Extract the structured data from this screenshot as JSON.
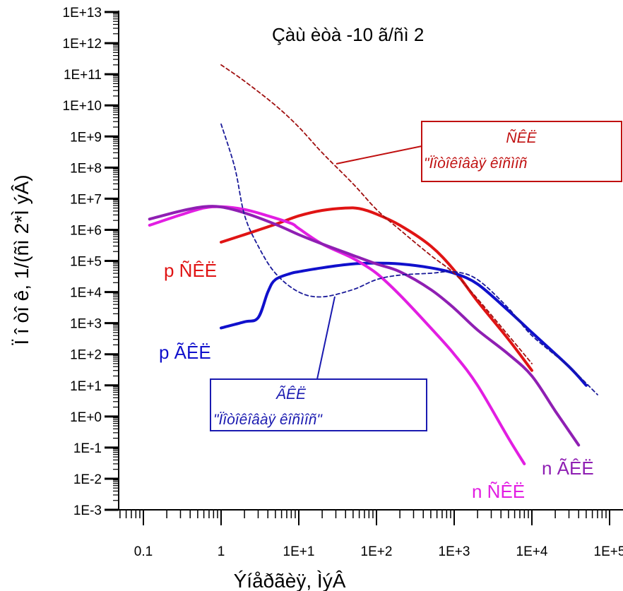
{
  "chart_data": {
    "type": "line",
    "title": "Çàù èòà -10 ã/ñì 2",
    "xlabel": "Ýíåðãèÿ, ÌýÂ",
    "ylabel": "Ï î òî ê, 1/(ñì 2*Ì ýÂ)",
    "x_scale": "log",
    "y_scale": "log",
    "xlim": [
      0.05,
      150000
    ],
    "ylim": [
      0.001,
      10000000000000.0
    ],
    "x_tick_labels": [
      "0.1",
      "1",
      "1E+1",
      "1E+2",
      "1E+3",
      "1E+4",
      "1E+5"
    ],
    "y_tick_labels": [
      "1E+13",
      "1E+12",
      "1E+11",
      "1E+10",
      "1E+9",
      "1E+8",
      "1E+7",
      "1E+6",
      "1E+5",
      "1E+4",
      "1E+3",
      "1E+2",
      "1E+1",
      "1E+0",
      "1E-1",
      "1E-2",
      "1E-3"
    ],
    "series": [
      {
        "label": "p ÑÊË",
        "color": "#e01414",
        "style": "solid",
        "points": [
          [
            1,
            400000
          ],
          [
            2,
            700000
          ],
          [
            5,
            1500000
          ],
          [
            10,
            2800000
          ],
          [
            20,
            4200000
          ],
          [
            40,
            5000000
          ],
          [
            60,
            4800000
          ],
          [
            100,
            3200000
          ],
          [
            200,
            1400000
          ],
          [
            500,
            300000
          ],
          [
            1000,
            50000
          ],
          [
            2000,
            5000
          ],
          [
            5000,
            300
          ],
          [
            10000,
            30
          ]
        ]
      },
      {
        "label": "p ÃÊË",
        "color": "#1010cc",
        "style": "solid",
        "points": [
          [
            1,
            700
          ],
          [
            2,
            1100
          ],
          [
            3,
            1500
          ],
          [
            4,
            10000
          ],
          [
            5,
            25000
          ],
          [
            8,
            40000
          ],
          [
            10,
            45000
          ],
          [
            20,
            60000
          ],
          [
            50,
            80000
          ],
          [
            100,
            85000
          ],
          [
            200,
            80000
          ],
          [
            500,
            60000
          ],
          [
            1000,
            40000
          ],
          [
            2000,
            18000
          ],
          [
            5000,
            2500
          ],
          [
            10000,
            500
          ],
          [
            30000,
            40
          ],
          [
            50000,
            10
          ]
        ]
      },
      {
        "label": "n ÑÊË",
        "color": "#e21ee2",
        "style": "solid",
        "points": [
          [
            0.12,
            1400000
          ],
          [
            0.3,
            3000000
          ],
          [
            0.6,
            5000000
          ],
          [
            1,
            5500000
          ],
          [
            2,
            4500000
          ],
          [
            4,
            2800000
          ],
          [
            8,
            1600000
          ],
          [
            10,
            1100000
          ],
          [
            20,
            350000
          ],
          [
            50,
            120000
          ],
          [
            100,
            40000
          ],
          [
            200,
            8000
          ],
          [
            500,
            700
          ],
          [
            1000,
            100
          ],
          [
            2000,
            10
          ],
          [
            5000,
            0.2
          ],
          [
            8000,
            0.03
          ]
        ]
      },
      {
        "label": "n ÃÊË",
        "color": "#8f1fb3",
        "style": "solid",
        "points": [
          [
            0.12,
            2200000
          ],
          [
            0.3,
            4000000
          ],
          [
            0.6,
            5500000
          ],
          [
            1,
            5400000
          ],
          [
            2,
            3500000
          ],
          [
            5,
            1500000
          ],
          [
            10,
            700000
          ],
          [
            20,
            350000
          ],
          [
            50,
            150000
          ],
          [
            100,
            80000
          ],
          [
            200,
            45000
          ],
          [
            500,
            12000
          ],
          [
            1000,
            3000
          ],
          [
            2000,
            600
          ],
          [
            5000,
            100
          ],
          [
            10000,
            20
          ],
          [
            20000,
            1.5
          ],
          [
            40000,
            0.12
          ]
        ]
      },
      {
        "label": "ÑÊË \"Ïîòîêîâàÿ êîñìîñ\"",
        "color": "#a01010",
        "style": "dashed",
        "points": [
          [
            1,
            200000000000
          ],
          [
            2,
            60000000000
          ],
          [
            5,
            10000000000
          ],
          [
            10,
            2000000000
          ],
          [
            20,
            300000000
          ],
          [
            50,
            30000000
          ],
          [
            100,
            4500000
          ],
          [
            200,
            1000000
          ],
          [
            500,
            150000
          ],
          [
            1000,
            40000
          ],
          [
            2000,
            6000
          ],
          [
            5000,
            400
          ],
          [
            10000,
            50
          ]
        ]
      },
      {
        "label": "ÃÊË \"Ïîòîêîâàÿ êîñìîñ\"",
        "color": "#1a1a99",
        "style": "dashed",
        "points": [
          [
            1,
            2500000000
          ],
          [
            1.5,
            100000000
          ],
          [
            2,
            3000000
          ],
          [
            3,
            300000
          ],
          [
            5,
            40000
          ],
          [
            10,
            10000
          ],
          [
            20,
            7000
          ],
          [
            50,
            12000
          ],
          [
            100,
            25000
          ],
          [
            200,
            35000
          ],
          [
            500,
            40000
          ],
          [
            1000,
            45000
          ],
          [
            2000,
            25000
          ],
          [
            5000,
            3000
          ],
          [
            10000,
            400
          ],
          [
            30000,
            40
          ],
          [
            70000,
            5
          ]
        ]
      }
    ],
    "annotations": {
      "p_gcr_label": "p ÃÊË",
      "p_scr_label": "p ÑÊË",
      "n_scr_label": "n ÑÊË",
      "n_gcr_label": "n ÃÊË",
      "box_red_line1": "ÑÊË",
      "box_red_line2": "\"Ïîòîêîâàÿ êîñìîñ",
      "box_blue_line1": "ÃÊË",
      "box_blue_line2": "\"Ïîòîêîâàÿ êîñìîñ\""
    }
  }
}
